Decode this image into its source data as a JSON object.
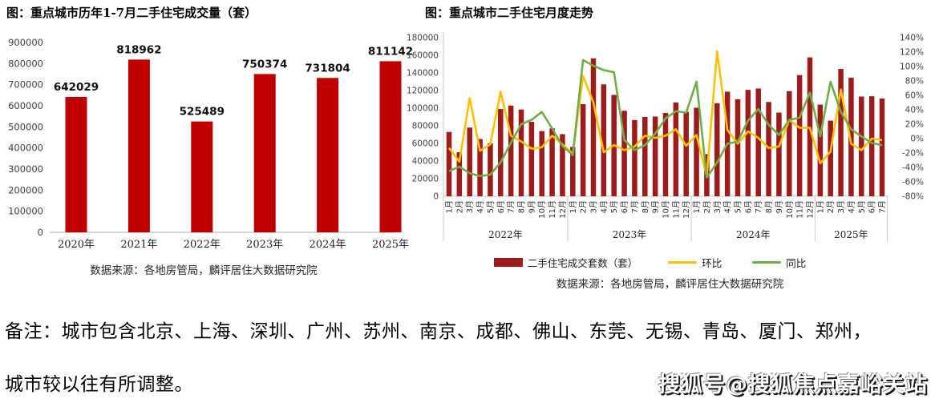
{
  "page": {
    "note_line1": "备注：城市包含北京、上海、深圳、广州、苏州、南京、成都、佛山、东莞、无锡、青岛、厦门、郑州，",
    "note_line2": "城市较以往有所调整。",
    "watermark": "搜狐号@搜狐焦点嘉峪关站"
  },
  "chart_data": [
    {
      "type": "bar",
      "title": "图：重点城市历年1-7月二手住宅成交量（套）",
      "categories": [
        "2020年",
        "2021年",
        "2022年",
        "2023年",
        "2024年",
        "2025年"
      ],
      "values": [
        642029,
        818962,
        525489,
        750374,
        731804,
        811142
      ],
      "ylim": [
        0,
        900000
      ],
      "ytick_step": 100000,
      "bar_color": "#c00000",
      "value_label_color": "#111111",
      "source": "数据来源：各地房管局，麟评居住大数据研究院"
    },
    {
      "type": "combo",
      "title": "图：重点城市二手住宅月度走势",
      "categories": [
        "1月",
        "2月",
        "3月",
        "4月",
        "5月",
        "6月",
        "7月",
        "8月",
        "9月",
        "10月",
        "11月",
        "12月",
        "1月",
        "2月",
        "3月",
        "4月",
        "5月",
        "6月",
        "7月",
        "8月",
        "9月",
        "10月",
        "11月",
        "12月",
        "1月",
        "2月",
        "3月",
        "4月",
        "5月",
        "6月",
        "7月",
        "8月",
        "9月",
        "10月",
        "11月",
        "12月",
        "1月",
        "2月",
        "3月",
        "4月",
        "5月",
        "6月",
        "7月"
      ],
      "year_groups": [
        {
          "label": "2022年",
          "months": 12
        },
        {
          "label": "2023年",
          "months": 12
        },
        {
          "label": "2024年",
          "months": 12
        },
        {
          "label": "2025年",
          "months": 7
        }
      ],
      "left_ylim": [
        0,
        180000
      ],
      "left_tick_step": 20000,
      "right_ylim_pct": [
        -80,
        140
      ],
      "right_tick_step_pct": 20,
      "series": [
        {
          "name": "二手住宅成交套数（套）",
          "type": "bar",
          "axis": "left",
          "color": "#9e1b1b",
          "values": [
            73000,
            50000,
            78000,
            65000,
            60000,
            99000,
            103000,
            98500,
            84500,
            74000,
            77000,
            70500,
            56000,
            104500,
            156500,
            127000,
            115000,
            97000,
            86500,
            90000,
            90500,
            94500,
            106500,
            96000,
            100500,
            47800,
            105600,
            118700,
            110000,
            120800,
            122300,
            107000,
            95000,
            119300,
            137500,
            157600,
            104000,
            85800,
            144500,
            134500,
            113200,
            113500,
            111000
          ]
        },
        {
          "name": "环比",
          "type": "line",
          "axis": "right",
          "color": "#ffc000",
          "values": [
            -13,
            -32,
            56,
            -17,
            -8,
            65,
            4,
            -4,
            -14,
            -12,
            4,
            -8,
            -21,
            87,
            50,
            -19,
            -9,
            -16,
            -11,
            4,
            1,
            4,
            13,
            -10,
            5,
            -52,
            121,
            12,
            -7,
            10,
            1,
            -13,
            -11,
            26,
            15,
            15,
            -34,
            -18,
            68,
            -7,
            -16,
            0,
            -2
          ]
        },
        {
          "name": "同比",
          "type": "line",
          "axis": "right",
          "color": "#70ad47",
          "values": [
            -45,
            -39,
            -48,
            -52,
            -50,
            -33,
            -6,
            20,
            26,
            37,
            14,
            -10,
            -23,
            109,
            101,
            95,
            92,
            -2,
            -16,
            -9,
            7,
            28,
            38,
            36,
            79,
            -54,
            -33,
            -7,
            -4,
            25,
            41,
            19,
            5,
            26,
            29,
            64,
            3,
            79,
            37,
            13,
            3,
            -6,
            -9
          ]
        }
      ],
      "source": "数据来源：各地房管局，麟评居住大数据研究院"
    }
  ]
}
